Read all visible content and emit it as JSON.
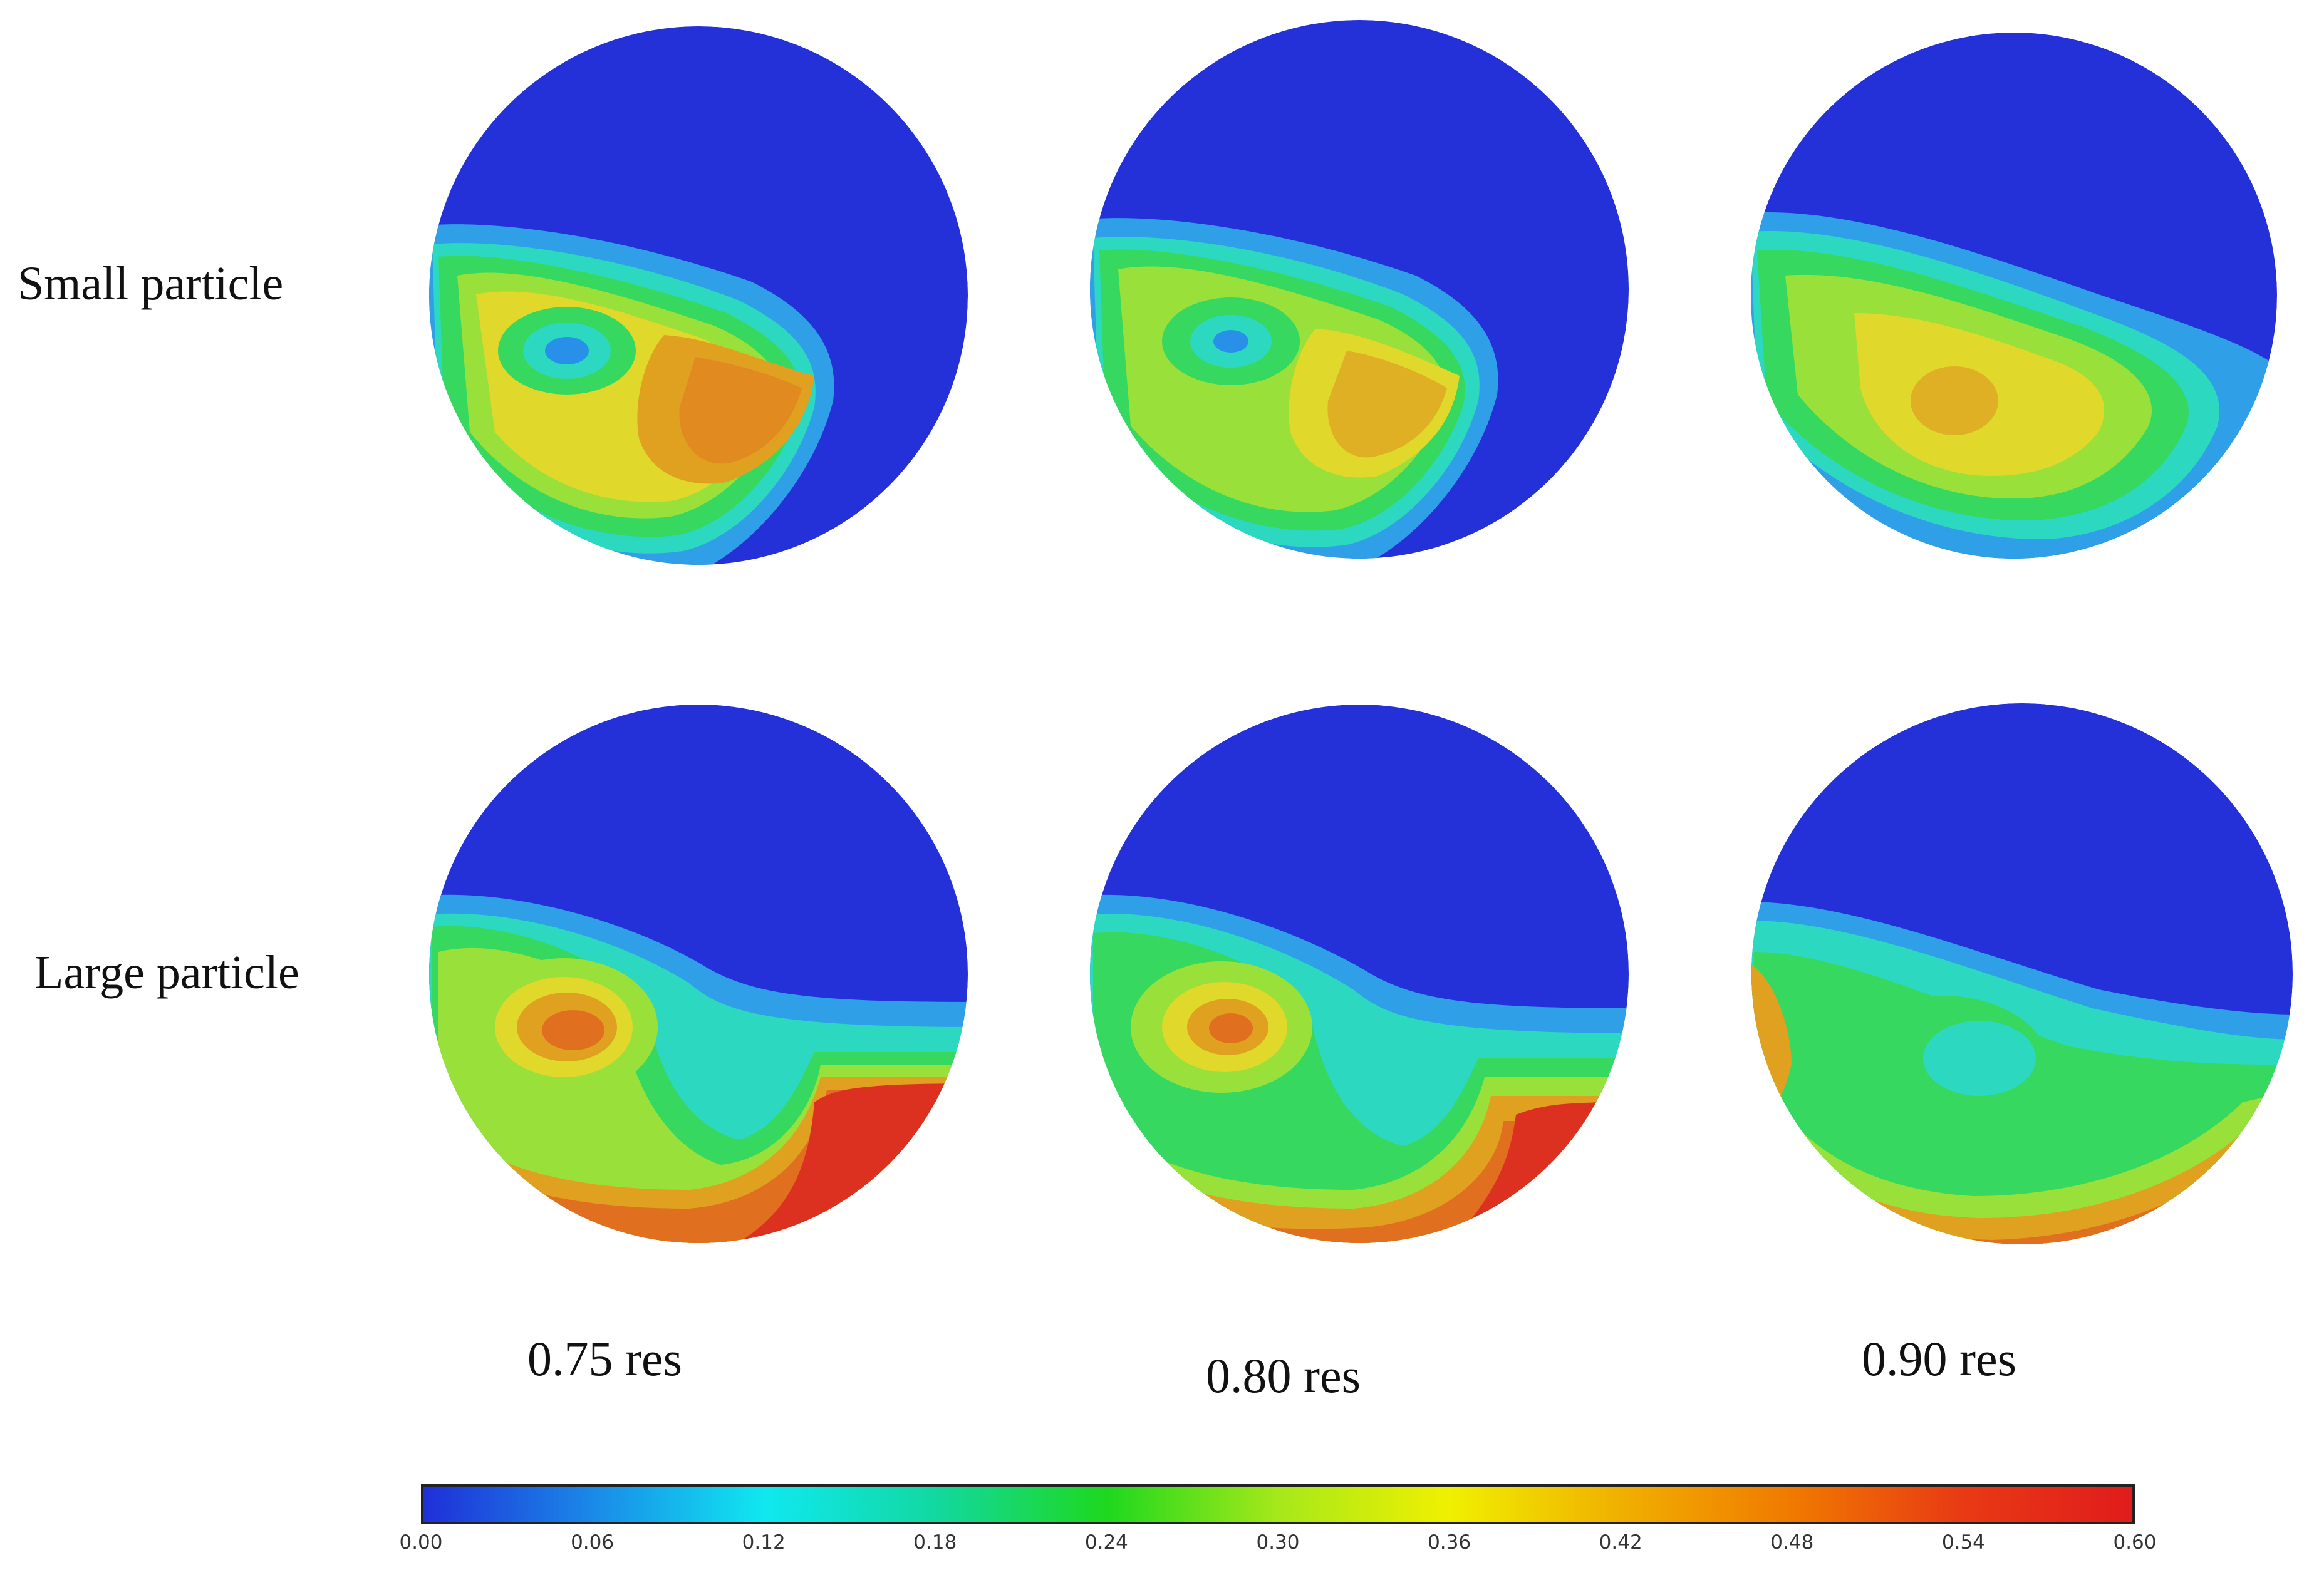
{
  "row_labels": [
    "Small particle",
    "Large particle"
  ],
  "column_labels": [
    "0.75 res",
    "0.80 res",
    "0.90 res"
  ],
  "colorbar": {
    "min": 0.0,
    "max": 0.6,
    "ticks": [
      "0.00",
      "0.06",
      "0.12",
      "0.18",
      "0.24",
      "0.30",
      "0.36",
      "0.42",
      "0.48",
      "0.54",
      "0.60"
    ],
    "colors": [
      "#1f2fd8",
      "#1a8ae8",
      "#10e8f0",
      "#12d8a0",
      "#1ed81e",
      "#a6e81a",
      "#f0f000",
      "#f0b000",
      "#f07a00",
      "#e83a14",
      "#e01c1c"
    ]
  },
  "panel_colors": {
    "background": "#2430d8",
    "band_1": "#2fa0e8",
    "band_2": "#2cd8c0",
    "band_3": "#36d860",
    "band_4": "#9ae03a",
    "band_5": "#e0d82a",
    "band_6": "#e0a020",
    "band_7": "#e07020",
    "band_8": "#dc3020",
    "low_spot": "#2890e8"
  }
}
